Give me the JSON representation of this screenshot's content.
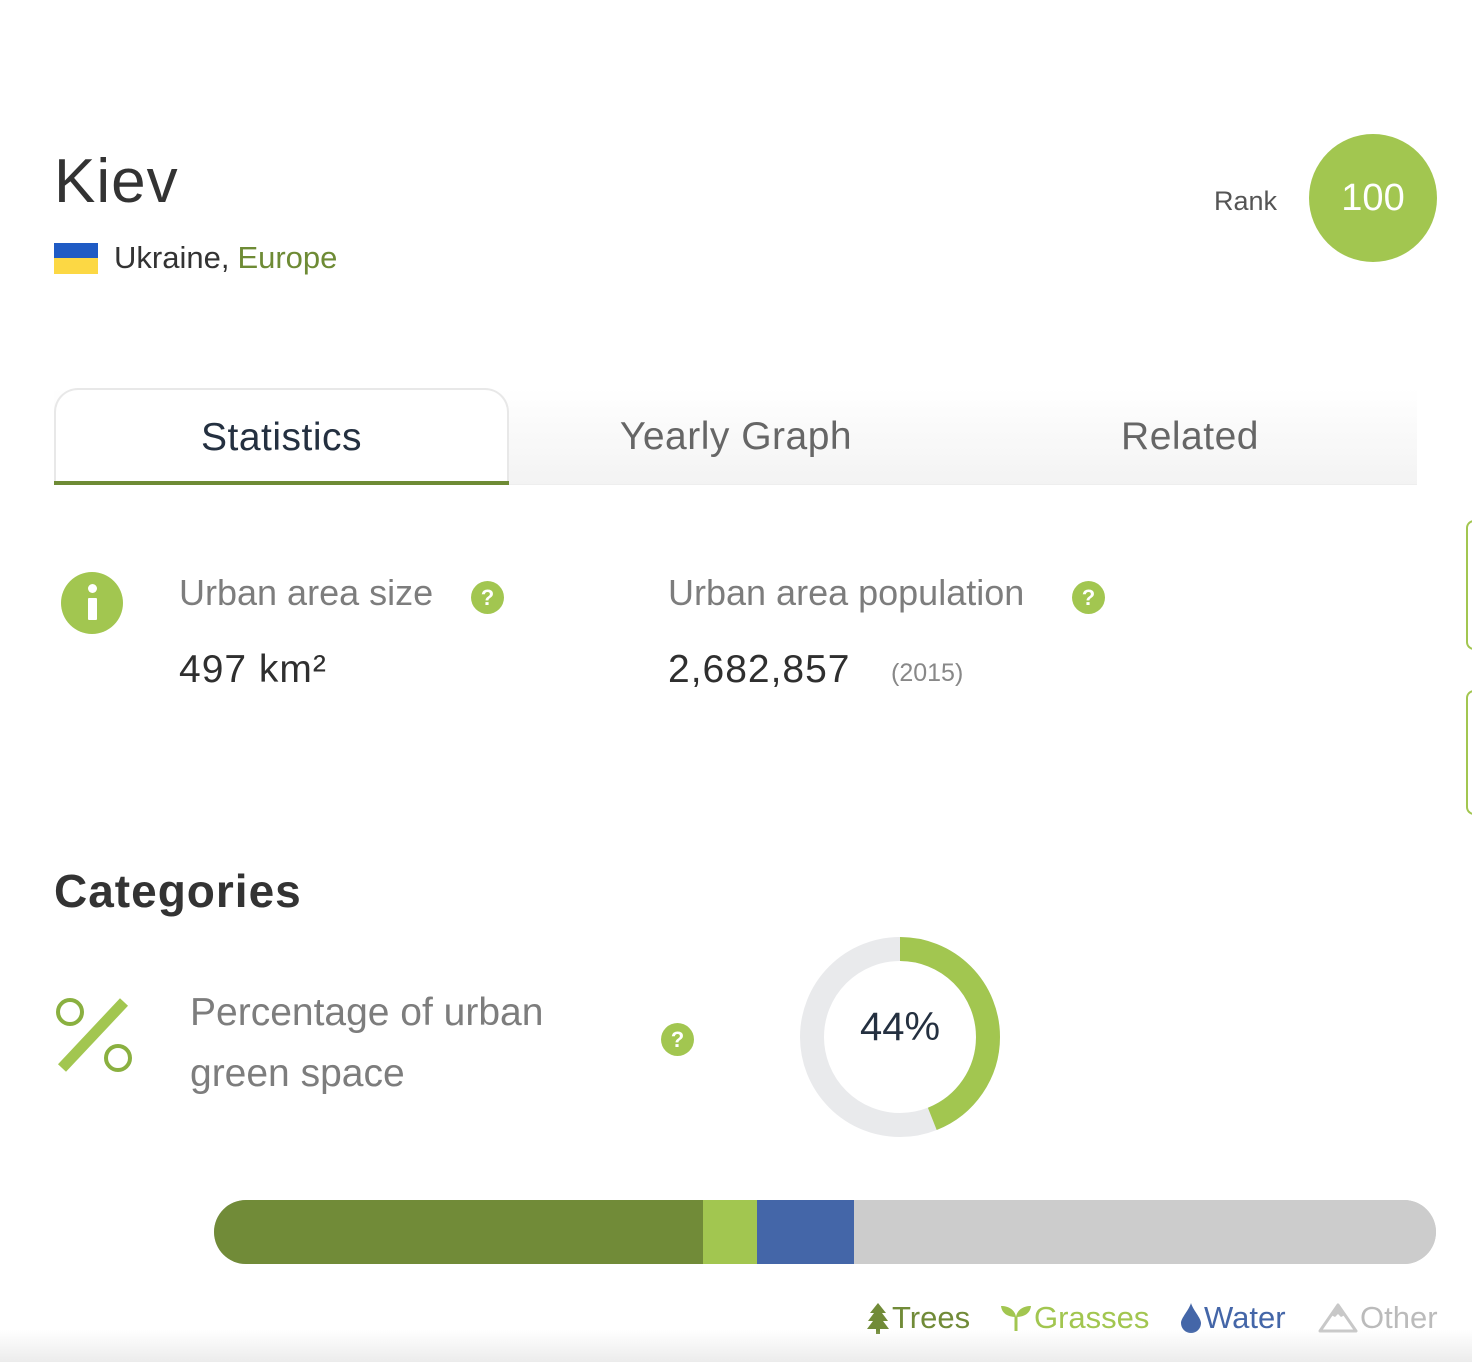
{
  "city": {
    "name": "Kiev",
    "country": "Ukraine,",
    "region": "Europe"
  },
  "rank": {
    "label": "Rank",
    "value": "100"
  },
  "tabs": [
    {
      "label": "Statistics",
      "active": true
    },
    {
      "label": "Yearly Graph",
      "active": false
    },
    {
      "label": "Related",
      "active": false
    }
  ],
  "stats": {
    "area": {
      "label": "Urban area size",
      "value": "497 km²"
    },
    "population": {
      "label": "Urban area population",
      "value": "2,682,857",
      "year": "(2015)"
    }
  },
  "help_glyph": "?",
  "categories": {
    "title": "Categories",
    "green_space_label": "Percentage of urban green space",
    "green_space_percent": 44,
    "green_space_text": "44%"
  },
  "composition": {
    "segments": [
      {
        "name": "Trees",
        "share": 0.4,
        "color": "#718b38"
      },
      {
        "name": "Grasses",
        "share": 0.044,
        "color": "#a2c650"
      },
      {
        "name": "Water",
        "share": 0.08,
        "color": "#4466a8"
      },
      {
        "name": "Other",
        "share": 0.476,
        "color": "#cccccc"
      }
    ]
  },
  "legend": [
    {
      "label": "Trees",
      "color": "#718b38",
      "icon": "tree-icon"
    },
    {
      "label": "Grasses",
      "color": "#a2c650",
      "icon": "sprout-icon"
    },
    {
      "label": "Water",
      "color": "#4466a8",
      "icon": "water-drop-icon"
    },
    {
      "label": "Other",
      "color": "#bbbbbb",
      "icon": "mountain-icon"
    }
  ],
  "colors": {
    "accent": "#a2c650",
    "accent_dark": "#6e8b35",
    "track": "#e9eaec"
  }
}
